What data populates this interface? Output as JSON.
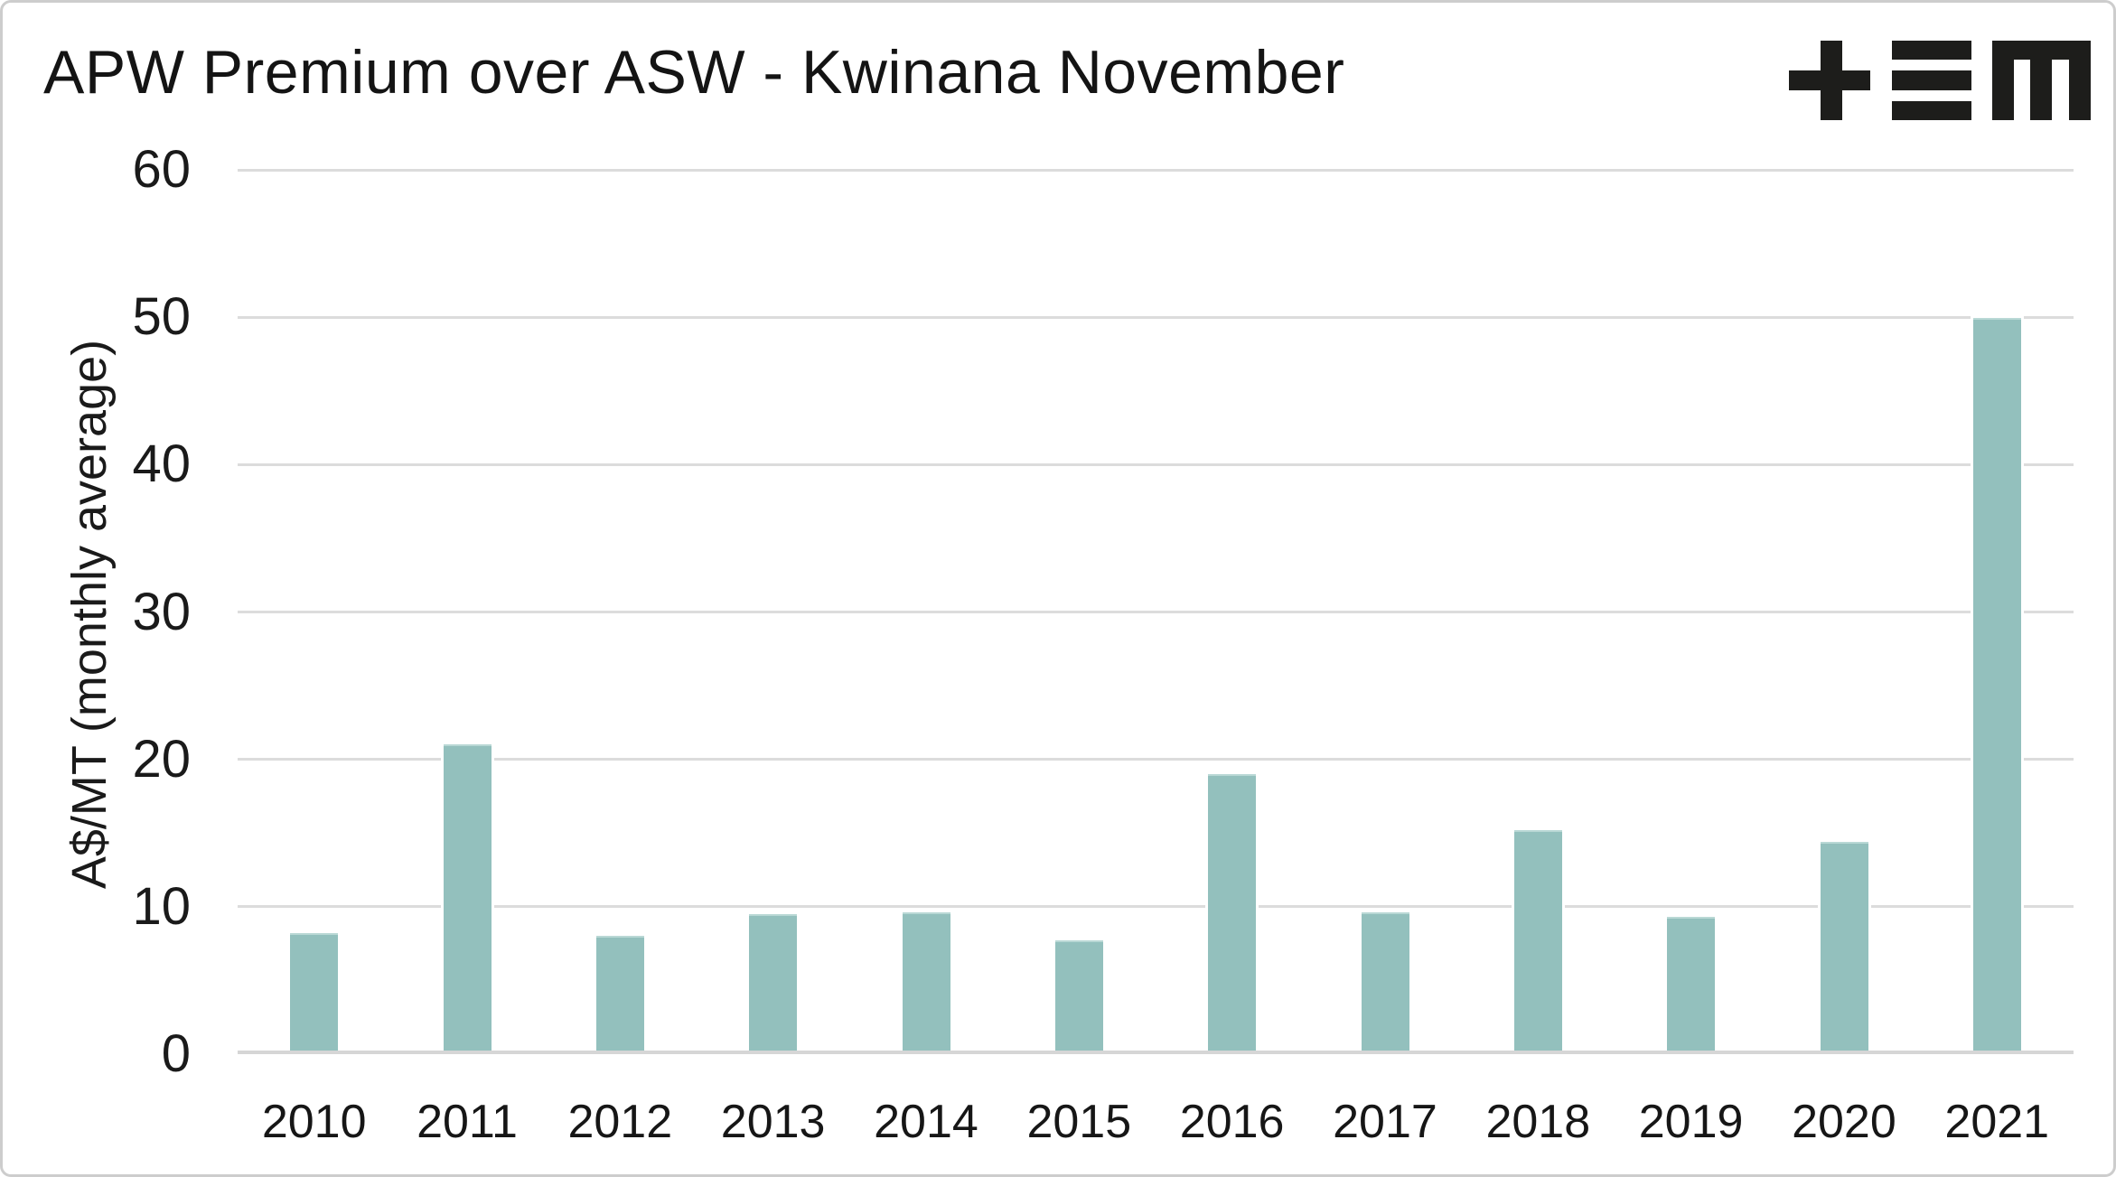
{
  "header": {
    "logo": "tem-logo"
  },
  "colors": {
    "bar": "#93c0bd",
    "gridline": "#dcdcdc",
    "axis_line": "#d6d6d6",
    "text": "#1a1a1a",
    "logo": "#1d1d1b",
    "card_border": "#cdcdcd",
    "background": "#ffffff"
  },
  "chart_data": {
    "type": "bar",
    "title": "APW Premium over ASW - Kwinana November",
    "xlabel": "",
    "ylabel": "A$/MT (monthly average)",
    "categories": [
      "2010",
      "2011",
      "2012",
      "2013",
      "2014",
      "2015",
      "2016",
      "2017",
      "2018",
      "2019",
      "2020",
      "2021"
    ],
    "values": [
      8.1,
      20.9,
      7.9,
      9.4,
      9.5,
      7.6,
      18.9,
      9.5,
      15.1,
      9.2,
      14.3,
      49.8
    ],
    "ylim": [
      0,
      60
    ],
    "yticks": [
      0,
      10,
      20,
      30,
      40,
      50,
      60
    ],
    "grid": "horizontal",
    "legend_position": "none",
    "bar_color": "#93c0bd"
  }
}
